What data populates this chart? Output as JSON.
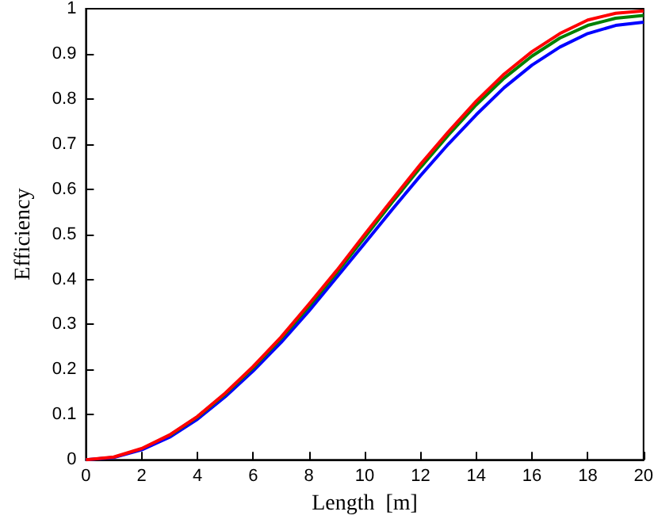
{
  "chart_data": {
    "type": "line",
    "xlabel": "Length  [m]",
    "ylabel": "Efficiency",
    "x": [
      0,
      1,
      2,
      3,
      4,
      5,
      6,
      7,
      8,
      9,
      10,
      11,
      12,
      13,
      14,
      15,
      16,
      17,
      18,
      19,
      20
    ],
    "series": [
      {
        "color": "#0000ff",
        "values": [
          0,
          0.005,
          0.022,
          0.05,
          0.09,
          0.14,
          0.197,
          0.26,
          0.33,
          0.405,
          0.48,
          0.556,
          0.63,
          0.7,
          0.765,
          0.825,
          0.875,
          0.915,
          0.945,
          0.963,
          0.97
        ]
      },
      {
        "color": "#008000",
        "values": [
          null,
          null,
          null,
          0.054,
          0.095,
          0.146,
          0.204,
          0.269,
          0.34,
          0.415,
          0.493,
          0.572,
          0.648,
          0.72,
          0.787,
          0.846,
          0.895,
          0.935,
          0.963,
          0.979,
          0.985
        ]
      },
      {
        "color": "#ff0000",
        "values": [
          0,
          0.006,
          0.025,
          0.055,
          0.096,
          0.148,
          0.207,
          0.272,
          0.345,
          0.42,
          0.5,
          0.578,
          0.655,
          0.727,
          0.795,
          0.855,
          0.905,
          0.945,
          0.975,
          0.99,
          0.995
        ]
      }
    ],
    "xlim": [
      0,
      20
    ],
    "xticks": [
      0,
      2,
      4,
      6,
      8,
      10,
      12,
      14,
      16,
      18,
      20
    ],
    "ylim": [
      0,
      1
    ],
    "yticks": [
      0,
      0.1,
      0.2,
      0.3,
      0.4,
      0.5,
      0.6,
      0.7,
      0.8,
      0.9,
      1
    ],
    "grid": false,
    "marker": "none",
    "line_style": "solid"
  }
}
